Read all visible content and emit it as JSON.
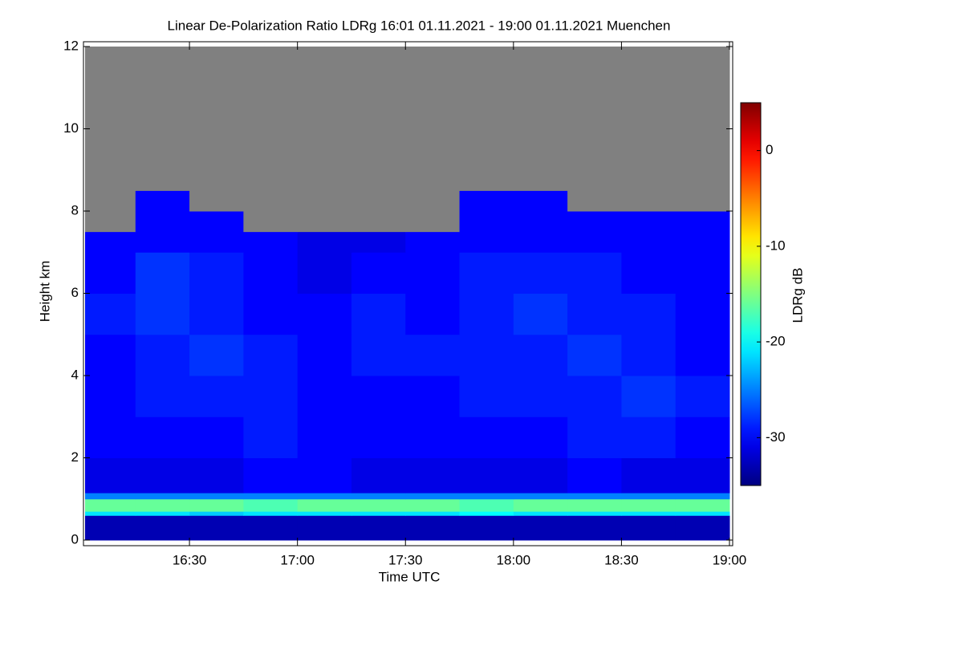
{
  "chart_data": {
    "type": "heatmap",
    "title": "Linear De-Polarization Ratio LDRg   16:01 01.11.2021 - 19:00 01.11.2021 Muenchen",
    "x_label": "Time UTC",
    "y_label": "Height km",
    "colorbar_label": "LDRg dB",
    "xlim": [
      16.0167,
      19.0
    ],
    "xticks": [
      {
        "value": 16.5,
        "label": "16:30"
      },
      {
        "value": 17.0,
        "label": "17:00"
      },
      {
        "value": 17.5,
        "label": "17:30"
      },
      {
        "value": 18.0,
        "label": "18:00"
      },
      {
        "value": 18.5,
        "label": "18:30"
      },
      {
        "value": 19.0,
        "label": "19:00"
      }
    ],
    "ylim": [
      0,
      12
    ],
    "yticks": [
      0,
      2,
      4,
      6,
      8,
      10,
      12
    ],
    "zlim": [
      -35,
      5
    ],
    "zticks": [
      -30,
      -20,
      -10,
      0
    ],
    "colormap": "jet",
    "missing_color": "#808080",
    "x_bins": [
      16.0167,
      16.25,
      16.5,
      16.75,
      17.0,
      17.25,
      17.5,
      17.75,
      18.0,
      18.25,
      18.5,
      18.75,
      19.0
    ],
    "y_bins": [
      0,
      0.6,
      0.7,
      1.0,
      1.15,
      2,
      3,
      4,
      5,
      6,
      7,
      7.5,
      8,
      8.5,
      12
    ],
    "z": [
      [
        -33,
        -33,
        -33,
        -33,
        -33,
        -33,
        -33,
        -33,
        -33,
        -33,
        -33,
        -33
      ],
      [
        -21,
        -21,
        -22,
        -21,
        -21,
        -21,
        -21,
        -20,
        -21,
        -21,
        -21,
        -21
      ],
      [
        -16,
        -16,
        -16,
        -17,
        -16,
        -16,
        -16,
        -17,
        -16,
        -16,
        -16,
        -16
      ],
      [
        -25,
        -25,
        -25,
        -25,
        -25,
        -25,
        -25,
        -25,
        -25,
        -25,
        -25,
        -25
      ],
      [
        -31,
        -31,
        -31,
        -30,
        -30,
        -31,
        -31,
        -31,
        -31,
        -30,
        -31,
        -31
      ],
      [
        -30,
        -30,
        -30,
        -29,
        -30,
        -30,
        -30,
        -30,
        -30,
        -29,
        -29,
        -30
      ],
      [
        -30,
        -29,
        -29,
        -29,
        -30,
        -30,
        -30,
        -29,
        -29,
        -29,
        -28,
        -29
      ],
      [
        -30,
        -29,
        -28,
        -29,
        -30,
        -29,
        -29,
        -29,
        -29,
        -28,
        -29,
        -30
      ],
      [
        -29,
        -28,
        -29,
        -30,
        -30,
        -29,
        -30,
        -29,
        -28,
        -29,
        -29,
        -30
      ],
      [
        -30,
        -28,
        -29,
        -30,
        -31,
        -30,
        -30,
        -29,
        -29,
        -29,
        -30,
        -30
      ],
      [
        -30,
        -30,
        -30,
        -30,
        -31,
        -31,
        -30,
        -30,
        -30,
        -30,
        -30,
        -30
      ],
      [
        null,
        -30,
        -30,
        null,
        null,
        null,
        null,
        -30,
        -30,
        -30,
        -30,
        -30
      ],
      [
        null,
        -30,
        null,
        null,
        null,
        null,
        null,
        -30,
        -30,
        null,
        null,
        null
      ],
      [
        null,
        null,
        null,
        null,
        null,
        null,
        null,
        null,
        null,
        null,
        null,
        null
      ]
    ]
  }
}
